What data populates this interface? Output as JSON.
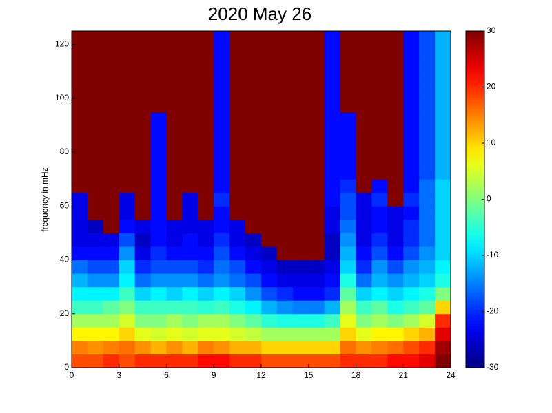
{
  "chart_data": {
    "type": "heatmap",
    "title": "2020 May 26",
    "ylabel": "frequency in mHz",
    "colormap": "jet",
    "x": [
      0,
      1,
      2,
      3,
      4,
      5,
      6,
      7,
      8,
      9,
      10,
      11,
      12,
      13,
      14,
      15,
      16,
      17,
      18,
      19,
      20,
      21,
      22,
      23,
      24
    ],
    "y": [
      0,
      5,
      10,
      15,
      20,
      25,
      30,
      35,
      40,
      45,
      50,
      55,
      60,
      65,
      70,
      75,
      80,
      85,
      90,
      95,
      100,
      105,
      110,
      115,
      120,
      125
    ],
    "z": [
      [
        18,
        18,
        20,
        18,
        20,
        20,
        20,
        20,
        22,
        22,
        20,
        20,
        18,
        18,
        18,
        18,
        18,
        20,
        20,
        20,
        22,
        22,
        24,
        30
      ],
      [
        15,
        14,
        15,
        16,
        14,
        12,
        14,
        12,
        15,
        14,
        12,
        12,
        10,
        10,
        10,
        10,
        10,
        16,
        14,
        15,
        16,
        18,
        20,
        28
      ],
      [
        8,
        8,
        8,
        10,
        6,
        5,
        6,
        5,
        6,
        6,
        5,
        4,
        2,
        2,
        2,
        2,
        2,
        10,
        6,
        8,
        8,
        10,
        12,
        24
      ],
      [
        2,
        2,
        2,
        5,
        0,
        0,
        2,
        0,
        2,
        2,
        0,
        -2,
        -5,
        -6,
        -6,
        -6,
        -4,
        6,
        0,
        2,
        0,
        2,
        5,
        20
      ],
      [
        -4,
        -4,
        -2,
        0,
        -4,
        -4,
        -4,
        -4,
        -5,
        -4,
        -6,
        -8,
        -12,
        -14,
        -15,
        -15,
        -12,
        2,
        -4,
        -2,
        -6,
        -4,
        -2,
        10
      ],
      [
        -8,
        -8,
        -8,
        -4,
        -10,
        -8,
        -10,
        -8,
        -10,
        -8,
        -10,
        -14,
        -18,
        -20,
        -22,
        -22,
        -20,
        -2,
        -10,
        -8,
        -10,
        -8,
        -6,
        0
      ],
      [
        -12,
        -14,
        -14,
        -8,
        -16,
        -14,
        -14,
        -14,
        -16,
        -14,
        -16,
        -18,
        -22,
        -24,
        -24,
        -24,
        -22,
        -6,
        -16,
        -12,
        -14,
        -12,
        -10,
        -6
      ],
      [
        -16,
        -18,
        -18,
        -10,
        -20,
        -18,
        -18,
        -18,
        -20,
        -16,
        -18,
        -22,
        -24,
        -26,
        -26,
        -26,
        -24,
        -10,
        -20,
        -14,
        -18,
        -14,
        -12,
        -8
      ],
      [
        -22,
        -22,
        -22,
        -14,
        -24,
        -20,
        -22,
        -22,
        -22,
        -18,
        -22,
        -24,
        -26,
        30,
        30,
        30,
        -26,
        -12,
        -22,
        -18,
        -22,
        -18,
        -14,
        -10
      ],
      [
        -24,
        -24,
        -24,
        -18,
        -26,
        -22,
        -24,
        -22,
        -24,
        -20,
        -24,
        -26,
        30,
        30,
        30,
        30,
        -26,
        -14,
        -24,
        -20,
        -24,
        -20,
        -16,
        -10
      ],
      [
        -24,
        -26,
        30,
        -22,
        -24,
        -22,
        -24,
        -24,
        -24,
        -22,
        -24,
        30,
        30,
        30,
        30,
        30,
        -24,
        -16,
        -24,
        -22,
        -24,
        -20,
        -16,
        -10
      ],
      [
        -24,
        30,
        30,
        -24,
        30,
        -22,
        30,
        -24,
        30,
        -22,
        30,
        30,
        30,
        30,
        30,
        30,
        -24,
        -18,
        -24,
        -22,
        -24,
        -22,
        -16,
        -10
      ],
      [
        -24,
        30,
        30,
        -24,
        30,
        -22,
        30,
        -24,
        30,
        -20,
        30,
        30,
        30,
        30,
        30,
        30,
        -22,
        -18,
        -24,
        -20,
        30,
        -20,
        -16,
        -10
      ],
      [
        30,
        30,
        30,
        30,
        30,
        -22,
        30,
        30,
        30,
        -22,
        30,
        30,
        30,
        30,
        30,
        30,
        -22,
        -20,
        30,
        -22,
        30,
        -22,
        -16,
        -10
      ],
      [
        30,
        30,
        30,
        30,
        30,
        -22,
        30,
        30,
        30,
        -22,
        30,
        30,
        30,
        30,
        30,
        30,
        -22,
        -22,
        30,
        30,
        30,
        -22,
        -18,
        -12
      ],
      [
        30,
        30,
        30,
        30,
        30,
        -22,
        30,
        30,
        30,
        -22,
        30,
        30,
        30,
        30,
        30,
        30,
        -22,
        -22,
        30,
        30,
        30,
        -22,
        -18,
        -12
      ],
      [
        30,
        30,
        30,
        30,
        30,
        -22,
        30,
        30,
        30,
        -22,
        30,
        30,
        30,
        30,
        30,
        30,
        -22,
        -22,
        30,
        30,
        30,
        -22,
        -18,
        -12
      ],
      [
        30,
        30,
        30,
        30,
        30,
        -22,
        30,
        30,
        30,
        -22,
        30,
        30,
        30,
        30,
        30,
        30,
        -22,
        -22,
        30,
        30,
        30,
        -22,
        -18,
        -12
      ],
      [
        30,
        30,
        30,
        30,
        30,
        -22,
        30,
        30,
        30,
        -22,
        30,
        30,
        30,
        30,
        30,
        30,
        -22,
        -22,
        30,
        30,
        30,
        -22,
        -18,
        -12
      ],
      [
        30,
        30,
        30,
        30,
        30,
        30,
        30,
        30,
        30,
        -22,
        30,
        30,
        30,
        30,
        30,
        30,
        -22,
        30,
        30,
        30,
        30,
        -22,
        -18,
        -12
      ],
      [
        30,
        30,
        30,
        30,
        30,
        30,
        30,
        30,
        30,
        -22,
        30,
        30,
        30,
        30,
        30,
        30,
        -22,
        30,
        30,
        30,
        30,
        -22,
        -18,
        -12
      ],
      [
        30,
        30,
        30,
        30,
        30,
        30,
        30,
        30,
        30,
        -22,
        30,
        30,
        30,
        30,
        30,
        30,
        -22,
        30,
        30,
        30,
        30,
        -22,
        -18,
        -12
      ],
      [
        30,
        30,
        30,
        30,
        30,
        30,
        30,
        30,
        30,
        -22,
        30,
        30,
        30,
        30,
        30,
        30,
        -22,
        30,
        30,
        30,
        30,
        -22,
        -18,
        -12
      ],
      [
        30,
        30,
        30,
        30,
        30,
        30,
        30,
        30,
        30,
        -22,
        30,
        30,
        30,
        30,
        30,
        30,
        -22,
        30,
        30,
        30,
        30,
        -22,
        -18,
        -12
      ],
      [
        30,
        30,
        30,
        30,
        30,
        30,
        30,
        30,
        30,
        -22,
        30,
        30,
        30,
        30,
        30,
        30,
        -22,
        30,
        30,
        30,
        30,
        -22,
        -18,
        -12
      ]
    ],
    "xlim": [
      0,
      24
    ],
    "xticks": [
      0,
      3,
      6,
      9,
      12,
      15,
      18,
      21,
      24
    ],
    "ylim": [
      0,
      125
    ],
    "yticks": [
      0,
      20,
      40,
      60,
      80,
      100,
      120
    ],
    "clim": [
      -30,
      30
    ],
    "cticks": [
      -30,
      -20,
      -10,
      0,
      10,
      20,
      30
    ]
  }
}
